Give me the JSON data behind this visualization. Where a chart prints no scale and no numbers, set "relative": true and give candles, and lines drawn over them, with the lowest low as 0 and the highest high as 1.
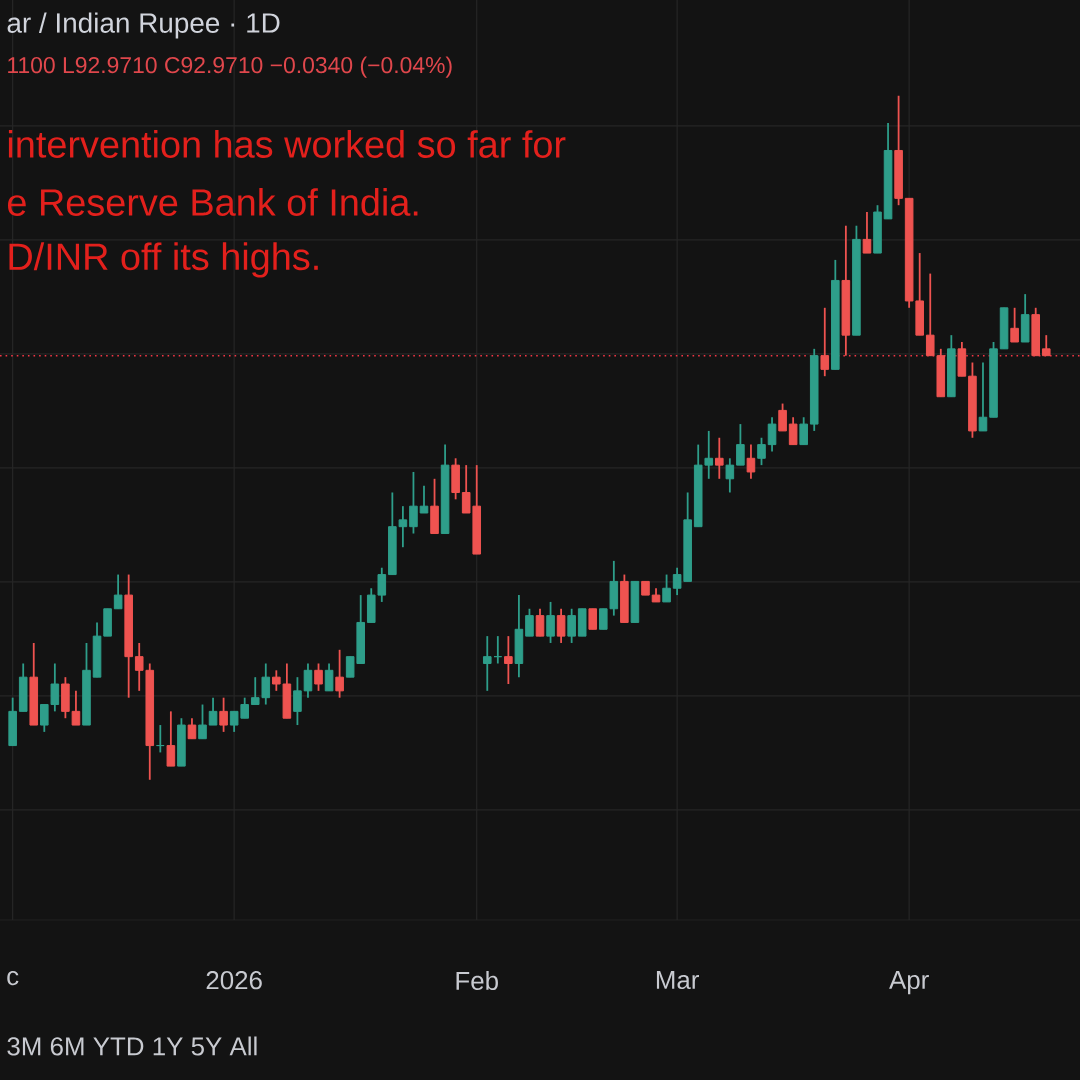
{
  "chart_data": {
    "type": "candlestick",
    "title": "ar / Indian Rupee · 1D",
    "subtitle": "1100 L92.9710 C92.9710 −0.0340 (−0.04%)",
    "annotations": [
      "intervention has worked so far for",
      "e Reserve Bank of India.",
      "D/INR off its highs.",
      "3M  6M  YTD  1Y  5Y  All"
    ],
    "relative": true,
    "grid": true,
    "ref_lines": [
      {
        "axis": "y",
        "value": 0.62,
        "color": "#f23645",
        "line_style": "dotted"
      }
    ],
    "categories": [
      "c",
      null,
      null,
      null,
      null,
      null,
      null,
      null,
      null,
      null,
      null,
      null,
      null,
      null,
      null,
      null,
      null,
      null,
      null,
      null,
      null,
      "2026",
      null,
      null,
      null,
      null,
      null,
      null,
      null,
      null,
      null,
      null,
      null,
      null,
      null,
      null,
      null,
      null,
      null,
      null,
      null,
      null,
      null,
      null,
      "Feb",
      null,
      null,
      null,
      null,
      null,
      null,
      null,
      null,
      null,
      null,
      null,
      null,
      null,
      null,
      null,
      null,
      null,
      null,
      "Mar",
      null,
      null,
      null,
      null,
      null,
      null,
      null,
      null,
      null,
      null,
      null,
      null,
      null,
      null,
      null,
      null,
      null,
      null,
      null,
      null,
      null,
      "Apr",
      null,
      null,
      null,
      null,
      null,
      null,
      null,
      null,
      null,
      null,
      null,
      null,
      null
    ],
    "ohlc": [
      [
        0.05,
        0.12,
        0.05,
        0.1
      ],
      [
        0.1,
        0.17,
        0.1,
        0.15
      ],
      [
        0.15,
        0.2,
        0.08,
        0.08
      ],
      [
        0.08,
        0.11,
        0.07,
        0.11
      ],
      [
        0.11,
        0.17,
        0.1,
        0.14
      ],
      [
        0.14,
        0.15,
        0.09,
        0.1
      ],
      [
        0.1,
        0.13,
        0.08,
        0.08
      ],
      [
        0.08,
        0.2,
        0.08,
        0.16
      ],
      [
        0.15,
        0.23,
        0.15,
        0.21
      ],
      [
        0.21,
        0.25,
        0.21,
        0.25
      ],
      [
        0.25,
        0.3,
        0.25,
        0.27
      ],
      [
        0.27,
        0.3,
        0.12,
        0.18
      ],
      [
        0.18,
        0.2,
        0.13,
        0.16
      ],
      [
        0.16,
        0.17,
        0,
        0.05
      ],
      [
        0.05,
        0.08,
        0.04,
        0.05
      ],
      [
        0.05,
        0.1,
        0.02,
        0.02
      ],
      [
        0.02,
        0.09,
        0.02,
        0.08
      ],
      [
        0.08,
        0.09,
        0.06,
        0.06
      ],
      [
        0.06,
        0.11,
        0.06,
        0.08
      ],
      [
        0.08,
        0.12,
        0.08,
        0.1
      ],
      [
        0.1,
        0.12,
        0.07,
        0.08
      ],
      [
        0.08,
        0.1,
        0.07,
        0.1
      ],
      [
        0.09,
        0.12,
        0.09,
        0.11
      ],
      [
        0.11,
        0.15,
        0.11,
        0.12
      ],
      [
        0.12,
        0.17,
        0.11,
        0.15
      ],
      [
        0.15,
        0.16,
        0.13,
        0.14
      ],
      [
        0.14,
        0.17,
        0.09,
        0.09
      ],
      [
        0.1,
        0.15,
        0.08,
        0.13
      ],
      [
        0.13,
        0.17,
        0.12,
        0.16
      ],
      [
        0.16,
        0.17,
        0.13,
        0.14
      ],
      [
        0.13,
        0.17,
        0.13,
        0.16
      ],
      [
        0.15,
        0.19,
        0.12,
        0.13
      ],
      [
        0.15,
        0.18,
        0.15,
        0.18
      ],
      [
        0.17,
        0.27,
        0.17,
        0.23
      ],
      [
        0.23,
        0.28,
        0.23,
        0.27
      ],
      [
        0.27,
        0.31,
        0.26,
        0.3
      ],
      [
        0.3,
        0.42,
        0.3,
        0.37
      ],
      [
        0.37,
        0.4,
        0.34,
        0.38
      ],
      [
        0.37,
        0.45,
        0.36,
        0.4
      ],
      [
        0.39,
        0.43,
        0.39,
        0.4
      ],
      [
        0.4,
        0.44,
        0.36,
        0.36
      ],
      [
        0.36,
        0.49,
        0.36,
        0.46
      ],
      [
        0.46,
        0.47,
        0.41,
        0.42
      ],
      [
        0.42,
        0.46,
        0.39,
        0.39
      ],
      [
        0.4,
        0.46,
        0.33,
        0.33
      ],
      [
        0.17,
        0.21,
        0.13,
        0.18
      ],
      [
        0.18,
        0.21,
        0.17,
        0.18
      ],
      [
        0.18,
        0.21,
        0.14,
        0.17
      ],
      [
        0.17,
        0.27,
        0.15,
        0.22
      ],
      [
        0.21,
        0.25,
        0.21,
        0.24
      ],
      [
        0.24,
        0.25,
        0.21,
        0.21
      ],
      [
        0.21,
        0.26,
        0.2,
        0.24
      ],
      [
        0.24,
        0.25,
        0.2,
        0.21
      ],
      [
        0.21,
        0.25,
        0.2,
        0.24
      ],
      [
        0.21,
        0.25,
        0.21,
        0.25
      ],
      [
        0.25,
        0.25,
        0.22,
        0.22
      ],
      [
        0.22,
        0.25,
        0.22,
        0.25
      ],
      [
        0.25,
        0.32,
        0.24,
        0.29
      ],
      [
        0.29,
        0.3,
        0.23,
        0.23
      ],
      [
        0.23,
        0.29,
        0.23,
        0.29
      ],
      [
        0.29,
        0.29,
        0.27,
        0.27
      ],
      [
        0.27,
        0.28,
        0.26,
        0.26
      ],
      [
        0.26,
        0.3,
        0.26,
        0.28
      ],
      [
        0.28,
        0.31,
        0.27,
        0.3
      ],
      [
        0.29,
        0.42,
        0.29,
        0.38
      ],
      [
        0.37,
        0.49,
        0.37,
        0.46
      ],
      [
        0.46,
        0.51,
        0.44,
        0.47
      ],
      [
        0.47,
        0.5,
        0.44,
        0.46
      ],
      [
        0.44,
        0.47,
        0.42,
        0.46
      ],
      [
        0.46,
        0.52,
        0.46,
        0.49
      ],
      [
        0.47,
        0.49,
        0.44,
        0.45
      ],
      [
        0.47,
        0.5,
        0.46,
        0.49
      ],
      [
        0.49,
        0.53,
        0.48,
        0.52
      ],
      [
        0.54,
        0.55,
        0.51,
        0.51
      ],
      [
        0.52,
        0.53,
        0.49,
        0.49
      ],
      [
        0.49,
        0.53,
        0.49,
        0.52
      ],
      [
        0.52,
        0.63,
        0.51,
        0.62
      ],
      [
        0.62,
        0.69,
        0.59,
        0.6
      ],
      [
        0.6,
        0.76,
        0.6,
        0.73
      ],
      [
        0.73,
        0.81,
        0.62,
        0.65
      ],
      [
        0.65,
        0.81,
        0.65,
        0.79
      ],
      [
        0.79,
        0.83,
        0.77,
        0.77
      ],
      [
        0.77,
        0.84,
        0.77,
        0.83
      ],
      [
        0.82,
        0.96,
        0.82,
        0.92
      ],
      [
        0.92,
        1,
        0.84,
        0.85
      ],
      [
        0.85,
        0.85,
        0.69,
        0.7
      ],
      [
        0.7,
        0.77,
        0.65,
        0.65
      ],
      [
        0.65,
        0.74,
        0.62,
        0.62
      ],
      [
        0.62,
        0.63,
        0.56,
        0.56
      ],
      [
        0.56,
        0.65,
        0.56,
        0.63
      ],
      [
        0.63,
        0.64,
        0.59,
        0.59
      ],
      [
        0.59,
        0.61,
        0.5,
        0.51
      ],
      [
        0.51,
        0.61,
        0.51,
        0.53
      ],
      [
        0.53,
        0.64,
        0.53,
        0.63
      ],
      [
        0.63,
        0.69,
        0.63,
        0.69
      ],
      [
        0.66,
        0.69,
        0.64,
        0.64
      ],
      [
        0.64,
        0.71,
        0.64,
        0.68
      ],
      [
        0.68,
        0.69,
        0.62,
        0.62
      ],
      [
        0.63,
        0.65,
        0.62,
        0.62
      ]
    ]
  }
}
